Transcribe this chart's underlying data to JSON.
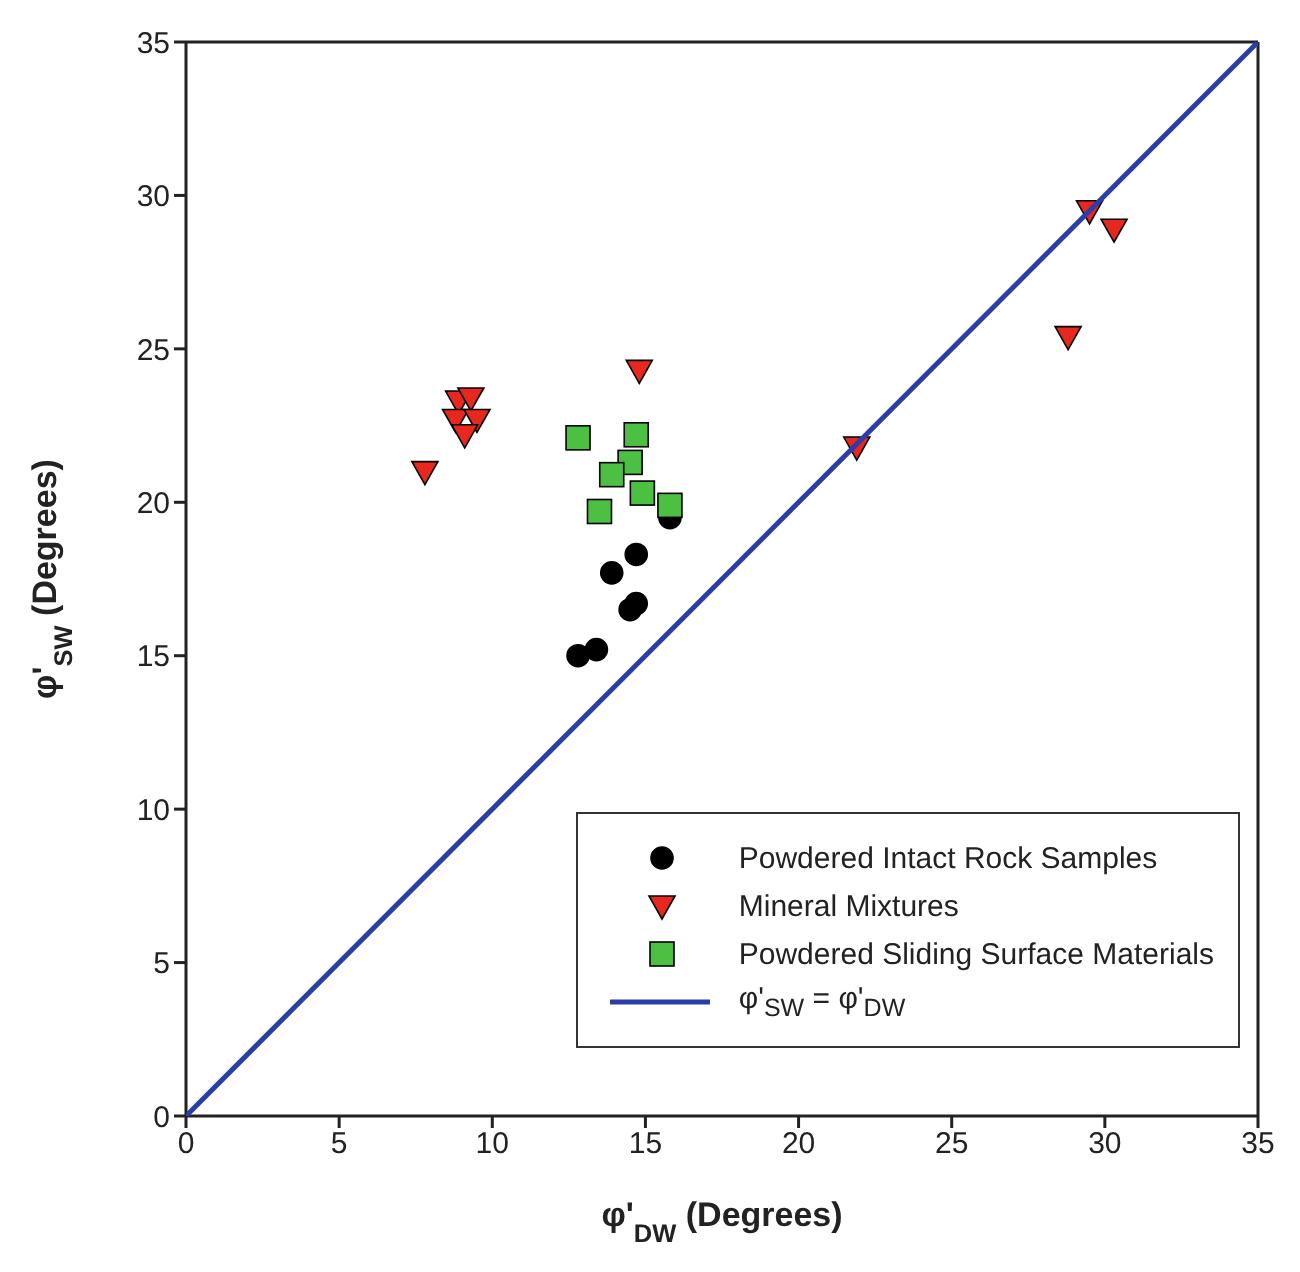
{
  "chart_data": {
    "type": "scatter",
    "xlabel": "φ'$_{DW}$ (Degrees)",
    "ylabel": "φ'$_{SW}$ (Degrees)",
    "xlim": [
      0,
      35
    ],
    "ylim": [
      0,
      35
    ],
    "xticks": [
      0,
      5,
      10,
      15,
      20,
      25,
      30,
      35
    ],
    "yticks": [
      0,
      5,
      10,
      15,
      20,
      25,
      30,
      35
    ],
    "legend": "bottom right",
    "series": [
      {
        "name": "Powdered Intact Rock Samples",
        "color": "#000000",
        "marker": "circle",
        "x": [
          12.8,
          13.4,
          13.9,
          14.5,
          14.7,
          14.7,
          15.8
        ],
        "values": [
          15.0,
          15.2,
          17.7,
          16.5,
          16.7,
          18.3,
          19.5
        ]
      },
      {
        "name": "Mineral Mixtures",
        "color": "#e8281e",
        "marker": "triangle",
        "x": [
          8.9,
          9.3,
          8.8,
          9.5,
          9.1,
          7.8,
          14.8,
          21.9,
          28.8,
          29.5,
          30.3
        ],
        "values": [
          23.3,
          23.4,
          22.7,
          22.7,
          22.2,
          21.0,
          24.3,
          21.8,
          25.4,
          29.5,
          28.9
        ]
      },
      {
        "name": "Powdered Sliding Surface Materials",
        "color": "#4cc043",
        "marker": "square",
        "x": [
          12.8,
          14.7,
          14.5,
          13.9,
          14.9,
          13.5,
          15.8
        ],
        "values": [
          22.1,
          22.2,
          21.3,
          20.9,
          20.3,
          19.7,
          19.9
        ]
      },
      {
        "name": "φ'$_{SW}$ = φ'$_{DW}$",
        "type": "line",
        "color": "#2b3ea8",
        "marker": "none",
        "line_style": "solid",
        "x": [
          0,
          35
        ],
        "values": [
          0,
          35
        ]
      }
    ]
  }
}
